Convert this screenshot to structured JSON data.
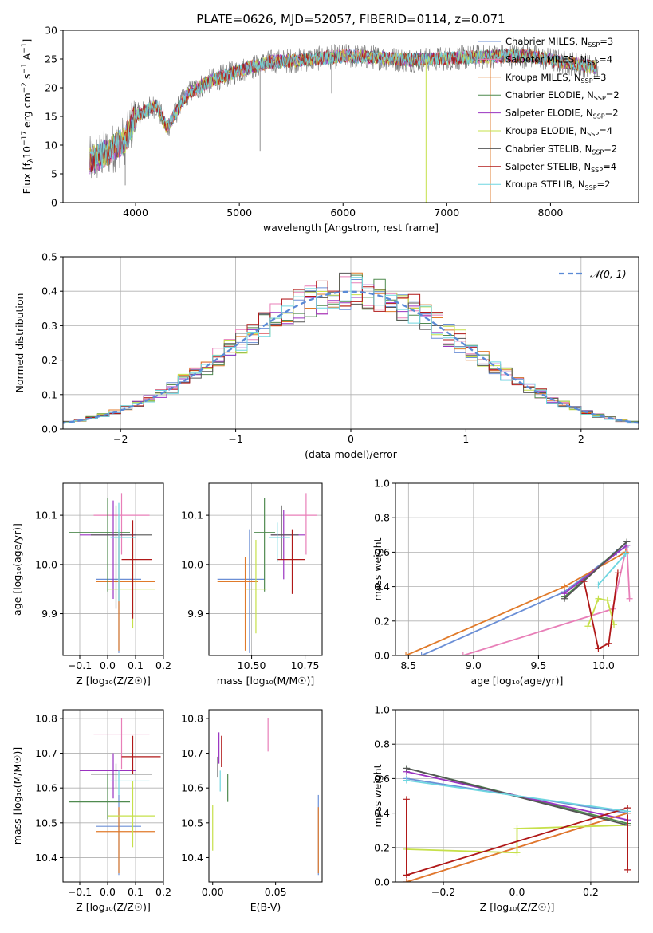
{
  "page_title": "PLATE=0626, MJD=52057, FIBERID=0114, z=0.071",
  "colors": {
    "Chabrier MILES": "#6b8fd6",
    "Salpeter MILES": "#e87fb8",
    "Kroupa MILES": "#e07a2a",
    "Chabrier ELODIE": "#4f8a4f",
    "Salpeter ELODIE": "#9a33c0",
    "Kroupa ELODIE": "#c6e04a",
    "Chabrier STELIB": "#555555",
    "Salpeter STELIB": "#b01818",
    "Kroupa STELIB": "#6fd6e0",
    "gaussian": "#5a8ad6",
    "grid": "#b0b0b0"
  },
  "chart_data": [
    {
      "type": "line",
      "title": "PLATE=0626, MJD=52057, FIBERID=0114, z=0.071",
      "xlabel": "wavelength [Angstrom, rest frame]",
      "ylabel_parts": [
        "Flux [f",
        "λ",
        "10",
        "−17",
        " erg cm",
        "−2",
        " s",
        "−1",
        " A",
        "−1",
        "]"
      ],
      "xlim": [
        3300,
        8850
      ],
      "ylim": [
        0,
        30
      ],
      "xticks": [
        4000,
        5000,
        6000,
        7000,
        8000
      ],
      "yticks": [
        0,
        5,
        10,
        15,
        20,
        25,
        30
      ],
      "grid": false,
      "legend_position": "right",
      "continuum_x": [
        3550,
        3750,
        3900,
        4000,
        4200,
        4300,
        4500,
        4700,
        5000,
        5300,
        5600,
        6000,
        6300,
        6600,
        6900,
        7200,
        7500,
        7800,
        8100,
        8300,
        8450
      ],
      "continuum_y": [
        7,
        9,
        11,
        15,
        17,
        13,
        19,
        21,
        23,
        24.5,
        24.8,
        25.5,
        25.3,
        24.8,
        25,
        25.3,
        25.5,
        25.5,
        24.5,
        24,
        23.5
      ],
      "series": [
        {
          "name_parts": [
            "Chabrier MILES, N",
            "SSP",
            "=3"
          ]
        },
        {
          "name_parts": [
            "Salpeter MILES, N",
            "SSP",
            "=4"
          ]
        },
        {
          "name_parts": [
            "Kroupa MILES, N",
            "SSP",
            "=3"
          ]
        },
        {
          "name_parts": [
            "Chabrier ELODIE, N",
            "SSP",
            "=2"
          ]
        },
        {
          "name_parts": [
            "Salpeter ELODIE, N",
            "SSP",
            "=2"
          ]
        },
        {
          "name_parts": [
            "Kroupa ELODIE, N",
            "SSP",
            "=4"
          ]
        },
        {
          "name_parts": [
            "Chabrier STELIB, N",
            "SSP",
            "=2"
          ]
        },
        {
          "name_parts": [
            "Salpeter STELIB, N",
            "SSP",
            "=4"
          ]
        },
        {
          "name_parts": [
            "Kroupa STELIB, N",
            "SSP",
            "=2"
          ]
        }
      ]
    },
    {
      "type": "histogram",
      "xlabel": "(data-model)/error",
      "ylabel": "Normed distribution",
      "xlim": [
        -2.5,
        2.5
      ],
      "ylim": [
        0,
        0.5
      ],
      "xticks": [
        -2,
        -1,
        0,
        1,
        2
      ],
      "yticks": [
        0.0,
        0.1,
        0.2,
        0.3,
        0.4,
        0.5
      ],
      "grid": true,
      "legend_position": "upper right",
      "legend_label": "𝒩(0, 1)",
      "bin_width": 0.1
    },
    {
      "type": "scatter",
      "xlabel": "Z [log₁₀(Z/Z☉)]",
      "ylabel": "age  [log₁₀(age/yr)]",
      "xlim": [
        -0.16,
        0.2
      ],
      "ylim": [
        9.815,
        10.165
      ],
      "xticks": [
        -0.1,
        0.0,
        0.1,
        0.2
      ],
      "yticks": [
        9.9,
        10.0,
        10.1
      ],
      "grid": true,
      "points": [
        {
          "s": 0,
          "x": 0.04,
          "y": 9.97,
          "xerr": [
            0.08,
            0.08
          ],
          "yerr": [
            0.15,
            0.1
          ]
        },
        {
          "s": 1,
          "x": 0.05,
          "y": 10.1,
          "xerr": [
            0.1,
            0.1
          ],
          "yerr": [
            0.08,
            0.045
          ]
        },
        {
          "s": 2,
          "x": 0.04,
          "y": 9.965,
          "xerr": [
            0.08,
            0.13
          ],
          "yerr": [
            0.14,
            0.1
          ]
        },
        {
          "s": 3,
          "x": 0.0,
          "y": 10.065,
          "xerr": [
            0.14,
            0.08
          ],
          "yerr": [
            0.12,
            0.07
          ]
        },
        {
          "s": 4,
          "x": 0.02,
          "y": 10.06,
          "xerr": [
            0.12,
            0.08
          ],
          "yerr": [
            0.13,
            0.07
          ]
        },
        {
          "s": 5,
          "x": 0.09,
          "y": 9.95,
          "xerr": [
            0.09,
            0.08
          ],
          "yerr": [
            0.08,
            0.1
          ]
        },
        {
          "s": 6,
          "x": 0.03,
          "y": 10.06,
          "xerr": [
            0.09,
            0.13
          ],
          "yerr": [
            0.15,
            0.06
          ]
        },
        {
          "s": 7,
          "x": 0.09,
          "y": 10.01,
          "xerr": [
            0.04,
            0.07
          ],
          "yerr": [
            0.12,
            0.08
          ]
        },
        {
          "s": 8,
          "x": 0.04,
          "y": 10.055,
          "xerr": [
            0.03,
            0.06
          ],
          "yerr": [
            0.13,
            0.07
          ]
        }
      ]
    },
    {
      "type": "scatter",
      "xlabel": "mass [log₁₀(M/M☉)]",
      "ylabel": "",
      "xlim": [
        10.3,
        10.83
      ],
      "ylim": [
        9.815,
        10.165
      ],
      "xticks": [
        10.5,
        10.75
      ],
      "yticks": [
        9.9,
        10.0,
        10.1
      ],
      "grid": true,
      "points": [
        {
          "s": 0,
          "x": 10.49,
          "y": 9.97,
          "xerr": [
            0.15,
            0.07
          ],
          "yerr": [
            0.15,
            0.1
          ]
        },
        {
          "s": 1,
          "x": 10.755,
          "y": 10.1,
          "xerr": [
            0.1,
            0.05
          ],
          "yerr": [
            0.08,
            0.045
          ]
        },
        {
          "s": 2,
          "x": 10.47,
          "y": 9.965,
          "xerr": [
            0.13,
            0.06
          ],
          "yerr": [
            0.14,
            0.05
          ]
        },
        {
          "s": 3,
          "x": 10.56,
          "y": 10.065,
          "xerr": [
            0.05,
            0.05
          ],
          "yerr": [
            0.12,
            0.07
          ]
        },
        {
          "s": 4,
          "x": 10.65,
          "y": 10.06,
          "xerr": [
            0.06,
            0.1
          ],
          "yerr": [
            0.09,
            0.05
          ]
        },
        {
          "s": 5,
          "x": 10.52,
          "y": 9.95,
          "xerr": [
            0.05,
            0.05
          ],
          "yerr": [
            0.09,
            0.1
          ]
        },
        {
          "s": 6,
          "x": 10.64,
          "y": 10.06,
          "xerr": [
            0.05,
            0.08
          ],
          "yerr": [
            0.05,
            0.06
          ]
        },
        {
          "s": 7,
          "x": 10.69,
          "y": 10.01,
          "xerr": [
            0.07,
            0.06
          ],
          "yerr": [
            0.07,
            0.06
          ]
        },
        {
          "s": 8,
          "x": 10.62,
          "y": 10.055,
          "xerr": [
            0.04,
            0.06
          ],
          "yerr": [
            0.05,
            0.03
          ]
        }
      ]
    },
    {
      "type": "line",
      "xlabel": "age  [log₁₀(age/yr)]",
      "ylabel": "mass weight",
      "xlim": [
        8.4,
        10.27
      ],
      "ylim": [
        0,
        1.0
      ],
      "xticks": [
        8.5,
        9.0,
        9.5,
        10.0
      ],
      "yticks": [
        0.0,
        0.2,
        0.4,
        0.6,
        0.8,
        1.0
      ],
      "grid": true,
      "series": [
        {
          "s": 0,
          "x": [
            8.6,
            9.7,
            10.1,
            10.17
          ],
          "y": [
            0.0,
            0.37,
            0.6,
            0.63
          ]
        },
        {
          "s": 1,
          "x": [
            8.92,
            10.07,
            10.18,
            10.2
          ],
          "y": [
            0.0,
            0.27,
            0.64,
            0.33
          ]
        },
        {
          "s": 2,
          "x": [
            8.48,
            9.7,
            10.17
          ],
          "y": [
            0.0,
            0.4,
            0.6
          ]
        },
        {
          "s": 3,
          "x": [
            9.7,
            10.18
          ],
          "y": [
            0.34,
            0.66
          ]
        },
        {
          "s": 4,
          "x": [
            9.7,
            10.18
          ],
          "y": [
            0.36,
            0.64
          ]
        },
        {
          "s": 5,
          "x": [
            9.88,
            9.96,
            10.03,
            10.08
          ],
          "y": [
            0.17,
            0.33,
            0.32,
            0.18
          ]
        },
        {
          "s": 6,
          "x": [
            9.7,
            10.18
          ],
          "y": [
            0.33,
            0.66
          ]
        },
        {
          "s": 7,
          "x": [
            9.85,
            9.96,
            10.04,
            10.11
          ],
          "y": [
            0.43,
            0.04,
            0.07,
            0.48
          ]
        },
        {
          "s": 8,
          "x": [
            9.96,
            10.17
          ],
          "y": [
            0.41,
            0.59
          ]
        }
      ]
    },
    {
      "type": "scatter",
      "xlabel": "Z [log₁₀(Z/Z☉)]",
      "ylabel": "mass [log₁₀(M/M☉)]",
      "xlim": [
        -0.16,
        0.2
      ],
      "ylim": [
        10.33,
        10.825
      ],
      "xticks": [
        -0.1,
        0.0,
        0.1,
        0.2
      ],
      "yticks": [
        10.4,
        10.5,
        10.6,
        10.7,
        10.8
      ],
      "grid": true,
      "points": [
        {
          "s": 0,
          "x": 0.04,
          "y": 10.49,
          "xerr": [
            0.08,
            0.08
          ],
          "yerr": [
            0.14,
            0.09
          ]
        },
        {
          "s": 1,
          "x": 0.05,
          "y": 10.755,
          "xerr": [
            0.1,
            0.1
          ],
          "yerr": [
            0.1,
            0.045
          ]
        },
        {
          "s": 2,
          "x": 0.04,
          "y": 10.475,
          "xerr": [
            0.08,
            0.13
          ],
          "yerr": [
            0.12,
            0.07
          ]
        },
        {
          "s": 3,
          "x": 0.0,
          "y": 10.56,
          "xerr": [
            0.14,
            0.08
          ],
          "yerr": [
            0.05,
            0.08
          ]
        },
        {
          "s": 4,
          "x": 0.02,
          "y": 10.65,
          "xerr": [
            0.12,
            0.08
          ],
          "yerr": [
            0.08,
            0.05
          ]
        },
        {
          "s": 5,
          "x": 0.09,
          "y": 10.52,
          "xerr": [
            0.09,
            0.08
          ],
          "yerr": [
            0.09,
            0.1
          ]
        },
        {
          "s": 6,
          "x": 0.03,
          "y": 10.64,
          "xerr": [
            0.09,
            0.13
          ],
          "yerr": [
            0.04,
            0.03
          ]
        },
        {
          "s": 7,
          "x": 0.09,
          "y": 10.69,
          "xerr": [
            0.04,
            0.1
          ],
          "yerr": [
            0.05,
            0.06
          ]
        },
        {
          "s": 8,
          "x": 0.04,
          "y": 10.62,
          "xerr": [
            0.03,
            0.11
          ],
          "yerr": [
            0.04,
            0.03
          ]
        }
      ]
    },
    {
      "type": "scatter",
      "xlabel": "E(B-V)",
      "ylabel": "",
      "xlim": [
        -0.003,
        0.087
      ],
      "ylim": [
        10.33,
        10.825
      ],
      "xticks": [
        0.0,
        0.05
      ],
      "yticks": [
        10.4,
        10.5,
        10.6,
        10.7,
        10.8
      ],
      "grid": false,
      "points": [
        {
          "s": 0,
          "x": 0.084,
          "y": 10.49,
          "xerr": [
            0,
            0
          ],
          "yerr": [
            0.14,
            0.09
          ]
        },
        {
          "s": 1,
          "x": 0.044,
          "y": 10.755,
          "xerr": [
            0,
            0
          ],
          "yerr": [
            0.05,
            0.045
          ]
        },
        {
          "s": 2,
          "x": 0.084,
          "y": 10.475,
          "xerr": [
            0,
            0
          ],
          "yerr": [
            0.12,
            0.07
          ]
        },
        {
          "s": 3,
          "x": 0.012,
          "y": 10.6,
          "xerr": [
            0,
            0
          ],
          "yerr": [
            0.04,
            0.04
          ]
        },
        {
          "s": 4,
          "x": 0.005,
          "y": 10.7,
          "xerr": [
            0,
            0
          ],
          "yerr": [
            0.03,
            0.06
          ]
        },
        {
          "s": 5,
          "x": 0.0,
          "y": 10.49,
          "xerr": [
            0,
            0
          ],
          "yerr": [
            0.07,
            0.06
          ]
        },
        {
          "s": 6,
          "x": 0.004,
          "y": 10.66,
          "xerr": [
            0,
            0
          ],
          "yerr": [
            0.03,
            0.03
          ]
        },
        {
          "s": 7,
          "x": 0.007,
          "y": 10.69,
          "xerr": [
            0,
            0
          ],
          "yerr": [
            0.03,
            0.06
          ]
        },
        {
          "s": 8,
          "x": 0.006,
          "y": 10.62,
          "xerr": [
            0,
            0
          ],
          "yerr": [
            0.03,
            0.03
          ]
        }
      ]
    },
    {
      "type": "line",
      "xlabel": "Z [log₁₀(Z/Z☉)]",
      "ylabel": "mass weight",
      "xlim": [
        -0.33,
        0.33
      ],
      "ylim": [
        0,
        1.0
      ],
      "xticks": [
        -0.2,
        0.0,
        0.2
      ],
      "yticks": [
        0.0,
        0.2,
        0.4,
        0.6,
        0.8,
        1.0
      ],
      "grid": true,
      "series": [
        {
          "s": 0,
          "x": [
            -0.3,
            0.3
          ],
          "y": [
            0.6,
            0.4
          ]
        },
        {
          "s": 1,
          "x": [
            -0.3,
            0.3
          ],
          "y": [
            0.0,
            0.4
          ]
        },
        {
          "s": 2,
          "x": [
            -0.3,
            0.3
          ],
          "y": [
            0.0,
            0.4
          ]
        },
        {
          "s": 3,
          "x": [
            -0.3,
            0.3
          ],
          "y": [
            0.66,
            0.34
          ]
        },
        {
          "s": 4,
          "x": [
            -0.3,
            0.3
          ],
          "y": [
            0.64,
            0.36
          ]
        },
        {
          "s": 5,
          "x": [
            -0.3,
            0.0,
            0.0,
            0.3
          ],
          "y": [
            0.19,
            0.17,
            0.31,
            0.33
          ]
        },
        {
          "s": 6,
          "x": [
            -0.3,
            0.3
          ],
          "y": [
            0.66,
            0.33
          ]
        },
        {
          "s": 7,
          "x": [
            -0.3,
            -0.3,
            0.3,
            0.3
          ],
          "y": [
            0.48,
            0.04,
            0.43,
            0.07
          ]
        },
        {
          "s": 8,
          "x": [
            -0.3,
            0.3
          ],
          "y": [
            0.59,
            0.41
          ]
        }
      ]
    }
  ]
}
